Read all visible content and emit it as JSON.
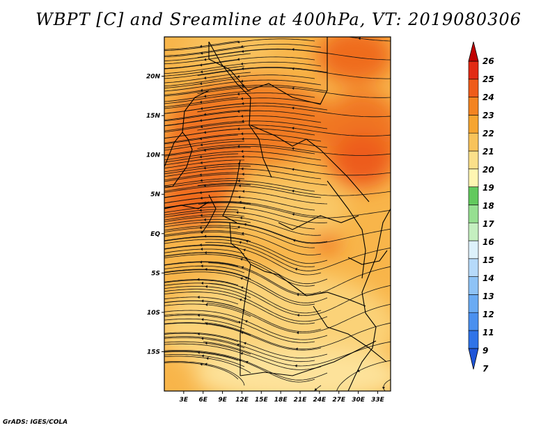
{
  "chart_data": {
    "type": "heatmap",
    "title": "WBPT [C] and Sreamline at 400hPa, VT: 2019080306",
    "variable": "WBPT [C]",
    "overlay": "Streamline",
    "level": "400hPa",
    "valid_time": "2019080306",
    "x_ticks": [
      "3E",
      "6E",
      "9E",
      "12E",
      "15E",
      "18E",
      "21E",
      "24E",
      "27E",
      "30E",
      "33E"
    ],
    "x_values": [
      3,
      6,
      9,
      12,
      15,
      18,
      21,
      24,
      27,
      30,
      33
    ],
    "y_ticks": [
      "20N",
      "15N",
      "10N",
      "5N",
      "EQ",
      "5S",
      "10S",
      "15S"
    ],
    "y_values": [
      20,
      15,
      10,
      5,
      0,
      -5,
      -10,
      -15
    ],
    "xlim": [
      0,
      35
    ],
    "ylim": [
      -20,
      25
    ],
    "colorbar": {
      "labels": [
        "7",
        "9",
        "11",
        "12",
        "13",
        "14",
        "15",
        "16",
        "17",
        "18",
        "19",
        "20",
        "21",
        "22",
        "23",
        "24",
        "25",
        "26"
      ],
      "colors": [
        "#1f55d8",
        "#2f73e8",
        "#4a90ef",
        "#6aabf3",
        "#8ec3f6",
        "#b6dafa",
        "#ddf1fb",
        "#c5efc0",
        "#96df91",
        "#62c95d",
        "#fff6b2",
        "#fbe08a",
        "#f8c35a",
        "#f6a530",
        "#f38421",
        "#ef5c1a",
        "#e22b14",
        "#c00000"
      ]
    },
    "dominant_range": "19-23 C"
  },
  "credit": "GrADS: IGES/COLA"
}
